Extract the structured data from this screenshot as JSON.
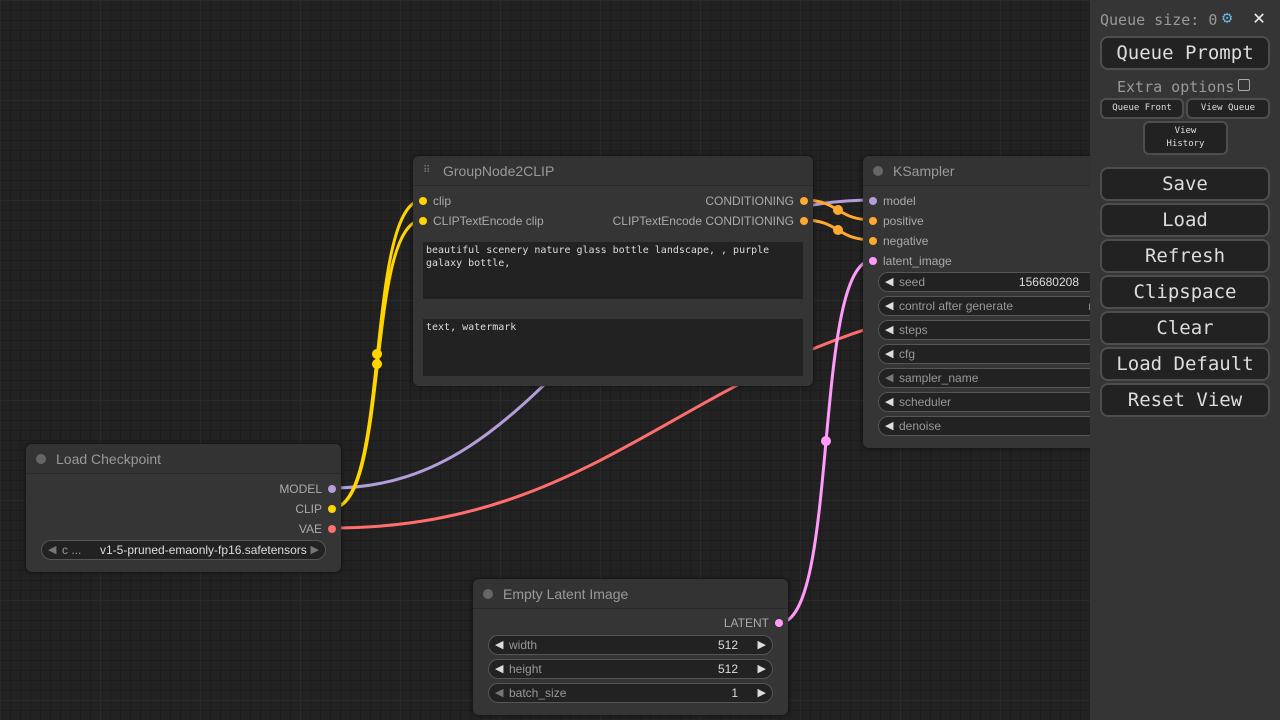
{
  "nodes": {
    "group": {
      "title": "GroupNode2CLIP",
      "inputs": [
        "clip",
        "CLIPTextEncode clip"
      ],
      "outputs": [
        "CONDITIONING",
        "CLIPTextEncode CONDITIONING"
      ],
      "positive_text": "beautiful scenery nature glass bottle landscape, , purple galaxy bottle,",
      "negative_text": "text, watermark"
    },
    "ksampler": {
      "title": "KSampler",
      "inputs": [
        "model",
        "positive",
        "negative",
        "latent_image"
      ],
      "widgets": [
        {
          "label": "seed",
          "value": "156680208"
        },
        {
          "label": "control after generate",
          "value": "ran"
        },
        {
          "label": "steps",
          "value": ""
        },
        {
          "label": "cfg",
          "value": ""
        },
        {
          "label": "sampler_name",
          "value": ""
        },
        {
          "label": "scheduler",
          "value": ""
        },
        {
          "label": "denoise",
          "value": ""
        }
      ]
    },
    "checkpoint": {
      "title": "Load Checkpoint",
      "outputs": [
        "MODEL",
        "CLIP",
        "VAE"
      ],
      "ckpt_label": "c ...",
      "ckpt_value": "v1-5-pruned-emaonly-fp16.safetensors"
    },
    "latent": {
      "title": "Empty Latent Image",
      "outputs": [
        "LATENT"
      ],
      "widgets": [
        {
          "label": "width",
          "value": "512"
        },
        {
          "label": "height",
          "value": "512"
        },
        {
          "label": "batch_size",
          "value": "1"
        }
      ]
    }
  },
  "colors": {
    "clip": "#ffd500",
    "model": "#b39ddb",
    "vae": "#ff6e6e",
    "conditioning": "#ffa931",
    "latent": "#ff9cf9"
  },
  "panel": {
    "queue_size": "Queue size: 0",
    "queue_prompt": "Queue Prompt",
    "extra_options": "Extra options",
    "queue_front": "Queue Front",
    "view_queue": "View Queue",
    "view_history": "View History",
    "buttons": [
      "Save",
      "Load",
      "Refresh",
      "Clipspace",
      "Clear",
      "Load Default",
      "Reset View"
    ]
  }
}
